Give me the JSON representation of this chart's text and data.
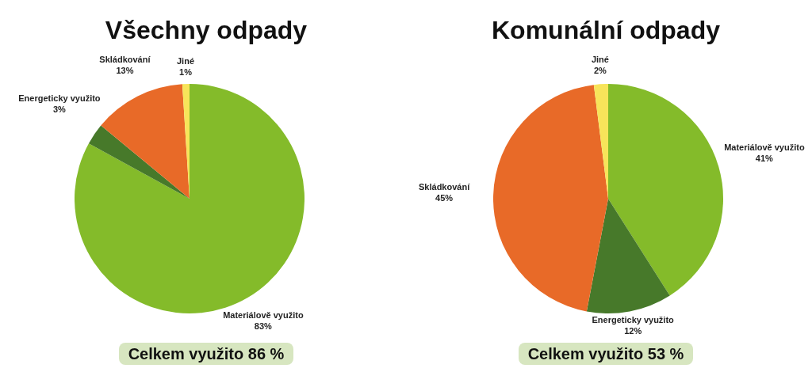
{
  "chart_data": [
    {
      "type": "pie",
      "title": "Všechny odpady",
      "categories": [
        "Materiálově využito",
        "Energeticky využito",
        "Skládkování",
        "Jiné"
      ],
      "values": [
        83,
        3,
        13,
        1
      ],
      "colors": [
        "#84bb2a",
        "#47792a",
        "#e86a28",
        "#f7e45a"
      ],
      "value_labels": [
        "83%",
        "3%",
        "13%",
        "1%"
      ],
      "legend": false,
      "annotations": [
        "Celkem využito 86 %"
      ]
    },
    {
      "type": "pie",
      "title": "Komunální odpady",
      "categories": [
        "Materiálově využito",
        "Energeticky využito",
        "Skládkování",
        "Jiné"
      ],
      "values": [
        41,
        12,
        45,
        2
      ],
      "colors": [
        "#84bb2a",
        "#47792a",
        "#e86a28",
        "#f7e45a"
      ],
      "value_labels": [
        "41%",
        "12%",
        "45%",
        "2%"
      ],
      "legend": false,
      "annotations": [
        "Celkem využito 53 %"
      ]
    }
  ]
}
